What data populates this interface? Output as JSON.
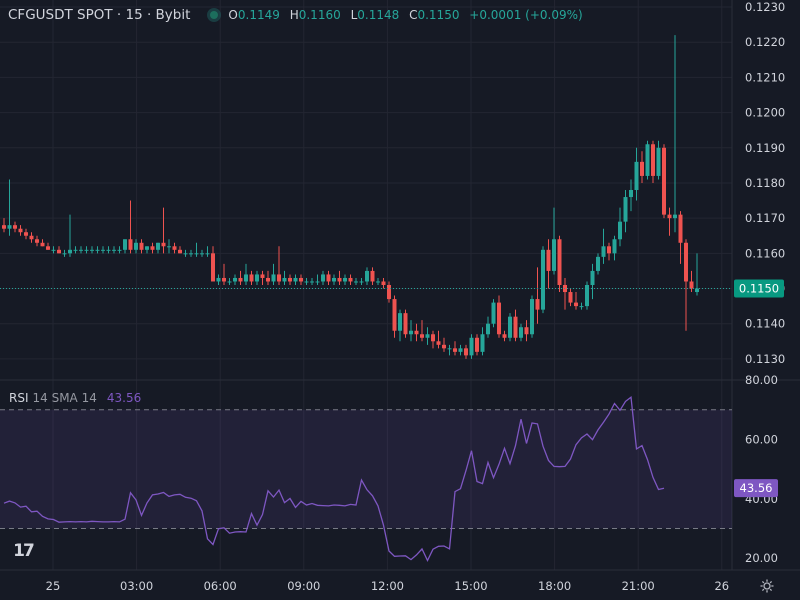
{
  "header": {
    "title": "CFGUSDT SPOT · 15 · Bybit",
    "ohlc": {
      "o_label": "O",
      "o": "0.1149",
      "h_label": "H",
      "h": "0.1160",
      "l_label": "L",
      "l": "0.1148",
      "c_label": "C",
      "c": "0.1150",
      "change": "+0.0001 (+0.09%)"
    }
  },
  "rsi_legend": {
    "name": "RSI",
    "params": "14 SMA 14",
    "value": "43.56"
  },
  "logo": {
    "text": "17"
  },
  "colors": {
    "background": "#161a25",
    "up": "#26a69a",
    "down": "#ef5350",
    "rsi": "#7e57c2",
    "grid": "#232632",
    "text": "#d1d4dc"
  },
  "icons": {
    "status": "live-status-dot",
    "settings": "gear-icon",
    "logo": "tradingview-logo"
  },
  "chart_data": [
    {
      "type": "candlestick",
      "price_axis": {
        "ticks": [
          "0.1230",
          "0.1220",
          "0.1210",
          "0.1200",
          "0.1190",
          "0.1180",
          "0.1170",
          "0.1160",
          "0.1150",
          "0.1140",
          "0.1130"
        ],
        "range": [
          0.1124,
          0.1232
        ]
      },
      "time_axis": {
        "ticks": [
          "25",
          "03:00",
          "06:00",
          "09:00",
          "12:00",
          "15:00",
          "18:00",
          "21:00",
          "26"
        ]
      },
      "current_price": {
        "label": "0.1150",
        "value": 0.115
      },
      "candles": [
        [
          0.1168,
          0.117,
          0.1166,
          0.1167
        ],
        [
          0.1167,
          0.1181,
          0.1165,
          0.1168
        ],
        [
          0.1168,
          0.1169,
          0.1166,
          0.1167
        ],
        [
          0.1167,
          0.1168,
          0.1165,
          0.1166
        ],
        [
          0.1166,
          0.1167,
          0.1164,
          0.1165
        ],
        [
          0.1165,
          0.1166,
          0.1163,
          0.1164
        ],
        [
          0.1164,
          0.1165,
          0.1162,
          0.1163
        ],
        [
          0.1163,
          0.1164,
          0.1162,
          0.1162
        ],
        [
          0.1162,
          0.1163,
          0.1161,
          0.1161
        ],
        [
          0.1161,
          0.1162,
          0.116,
          0.1161
        ],
        [
          0.1161,
          0.1162,
          0.116,
          0.116
        ],
        [
          0.116,
          0.1161,
          0.1159,
          0.116
        ],
        [
          0.116,
          0.1171,
          0.1159,
          0.1161
        ],
        [
          0.1161,
          0.1162,
          0.116,
          0.1161
        ],
        [
          0.1161,
          0.1162,
          0.116,
          0.1161
        ],
        [
          0.1161,
          0.1162,
          0.116,
          0.1161
        ],
        [
          0.1161,
          0.1162,
          0.116,
          0.1161
        ],
        [
          0.1161,
          0.1162,
          0.116,
          0.1161
        ],
        [
          0.1161,
          0.1162,
          0.116,
          0.1161
        ],
        [
          0.1161,
          0.1162,
          0.116,
          0.1161
        ],
        [
          0.1161,
          0.1162,
          0.116,
          0.1161
        ],
        [
          0.1161,
          0.1162,
          0.116,
          0.1161
        ],
        [
          0.1161,
          0.1164,
          0.116,
          0.1164
        ],
        [
          0.1164,
          0.1175,
          0.116,
          0.1161
        ],
        [
          0.1161,
          0.1164,
          0.116,
          0.1163
        ],
        [
          0.1163,
          0.1164,
          0.116,
          0.1161
        ],
        [
          0.1161,
          0.1162,
          0.116,
          0.1162
        ],
        [
          0.1162,
          0.1163,
          0.116,
          0.1161
        ],
        [
          0.1161,
          0.1163,
          0.116,
          0.1163
        ],
        [
          0.1163,
          0.1173,
          0.116,
          0.1162
        ],
        [
          0.1162,
          0.1164,
          0.116,
          0.1162
        ],
        [
          0.1162,
          0.1163,
          0.116,
          0.1161
        ],
        [
          0.1161,
          0.1162,
          0.116,
          0.116
        ],
        [
          0.116,
          0.1161,
          0.1159,
          0.116
        ],
        [
          0.116,
          0.1161,
          0.1159,
          0.116
        ],
        [
          0.116,
          0.1163,
          0.1159,
          0.116
        ],
        [
          0.116,
          0.1161,
          0.1159,
          0.116
        ],
        [
          0.116,
          0.1162,
          0.1159,
          0.116
        ],
        [
          0.116,
          0.1162,
          0.1152,
          0.1152
        ],
        [
          0.1152,
          0.1154,
          0.1151,
          0.1153
        ],
        [
          0.1153,
          0.1157,
          0.1151,
          0.1152
        ],
        [
          0.1152,
          0.1153,
          0.1151,
          0.1152
        ],
        [
          0.1152,
          0.1154,
          0.1151,
          0.1153
        ],
        [
          0.1153,
          0.1155,
          0.1151,
          0.1152
        ],
        [
          0.1152,
          0.1157,
          0.1151,
          0.1154
        ],
        [
          0.1154,
          0.1155,
          0.1151,
          0.1152
        ],
        [
          0.1152,
          0.1155,
          0.1151,
          0.1154
        ],
        [
          0.1154,
          0.1155,
          0.1151,
          0.1153
        ],
        [
          0.1153,
          0.1155,
          0.1151,
          0.1152
        ],
        [
          0.1152,
          0.1157,
          0.1151,
          0.1154
        ],
        [
          0.1154,
          0.1162,
          0.1151,
          0.1152
        ],
        [
          0.1152,
          0.1155,
          0.1151,
          0.1153
        ],
        [
          0.1153,
          0.1154,
          0.1151,
          0.1152
        ],
        [
          0.1152,
          0.1154,
          0.1151,
          0.1153
        ],
        [
          0.1153,
          0.1154,
          0.1151,
          0.1152
        ],
        [
          0.1152,
          0.1153,
          0.1151,
          0.1152
        ],
        [
          0.1152,
          0.1153,
          0.1151,
          0.1152
        ],
        [
          0.1152,
          0.1154,
          0.1151,
          0.1152
        ],
        [
          0.1152,
          0.1155,
          0.1151,
          0.1154
        ],
        [
          0.1154,
          0.1155,
          0.1151,
          0.1152
        ],
        [
          0.1152,
          0.1154,
          0.1151,
          0.1153
        ],
        [
          0.1153,
          0.1155,
          0.1151,
          0.1152
        ],
        [
          0.1152,
          0.1154,
          0.1151,
          0.1153
        ],
        [
          0.1153,
          0.1154,
          0.1151,
          0.1152
        ],
        [
          0.1152,
          0.1153,
          0.1151,
          0.1152
        ],
        [
          0.1152,
          0.1153,
          0.1151,
          0.1152
        ],
        [
          0.1152,
          0.1156,
          0.1151,
          0.1155
        ],
        [
          0.1155,
          0.1156,
          0.1151,
          0.1152
        ],
        [
          0.1152,
          0.1153,
          0.1151,
          0.1152
        ],
        [
          0.1152,
          0.1153,
          0.115,
          0.1151
        ],
        [
          0.1151,
          0.1152,
          0.1146,
          0.1147
        ],
        [
          0.1147,
          0.1148,
          0.1136,
          0.1138
        ],
        [
          0.1138,
          0.1144,
          0.1135,
          0.1143
        ],
        [
          0.1143,
          0.1144,
          0.1136,
          0.1137
        ],
        [
          0.1137,
          0.1141,
          0.1135,
          0.1138
        ],
        [
          0.1138,
          0.114,
          0.1135,
          0.1137
        ],
        [
          0.1137,
          0.1141,
          0.1135,
          0.1136
        ],
        [
          0.1136,
          0.1139,
          0.1134,
          0.1137
        ],
        [
          0.1137,
          0.1138,
          0.1133,
          0.1135
        ],
        [
          0.1135,
          0.1138,
          0.1133,
          0.1134
        ],
        [
          0.1134,
          0.1136,
          0.1132,
          0.1133
        ],
        [
          0.1133,
          0.1134,
          0.1131,
          0.1133
        ],
        [
          0.1133,
          0.1135,
          0.1131,
          0.1132
        ],
        [
          0.1132,
          0.1134,
          0.1131,
          0.1133
        ],
        [
          0.1133,
          0.1134,
          0.113,
          0.1131
        ],
        [
          0.1131,
          0.1137,
          0.113,
          0.1136
        ],
        [
          0.1136,
          0.1137,
          0.1131,
          0.1132
        ],
        [
          0.1132,
          0.1139,
          0.1131,
          0.1137
        ],
        [
          0.1137,
          0.1142,
          0.1136,
          0.114
        ],
        [
          0.114,
          0.1147,
          0.1139,
          0.1146
        ],
        [
          0.1146,
          0.1148,
          0.1136,
          0.1137
        ],
        [
          0.1137,
          0.1138,
          0.1135,
          0.1136
        ],
        [
          0.1136,
          0.1143,
          0.1135,
          0.1142
        ],
        [
          0.1142,
          0.1144,
          0.1135,
          0.1136
        ],
        [
          0.1136,
          0.114,
          0.1135,
          0.1139
        ],
        [
          0.1139,
          0.1141,
          0.1135,
          0.1137
        ],
        [
          0.1137,
          0.1148,
          0.1136,
          0.1147
        ],
        [
          0.1147,
          0.1156,
          0.114,
          0.1144
        ],
        [
          0.1144,
          0.1162,
          0.1143,
          0.1161
        ],
        [
          0.1161,
          0.1164,
          0.115,
          0.1155
        ],
        [
          0.1155,
          0.1173,
          0.1154,
          0.1164
        ],
        [
          0.1164,
          0.1165,
          0.1149,
          0.1151
        ],
        [
          0.1151,
          0.1153,
          0.1144,
          0.1149
        ],
        [
          0.1149,
          0.115,
          0.1145,
          0.1146
        ],
        [
          0.1146,
          0.1149,
          0.1144,
          0.1145
        ],
        [
          0.1145,
          0.1146,
          0.1144,
          0.1145
        ],
        [
          0.1145,
          0.1152,
          0.1144,
          0.1151
        ],
        [
          0.1151,
          0.1157,
          0.1147,
          0.1155
        ],
        [
          0.1155,
          0.116,
          0.1154,
          0.1159
        ],
        [
          0.1159,
          0.1167,
          0.1157,
          0.1162
        ],
        [
          0.1162,
          0.1163,
          0.1158,
          0.116
        ],
        [
          0.116,
          0.1165,
          0.1158,
          0.1164
        ],
        [
          0.1164,
          0.1173,
          0.1162,
          0.1169
        ],
        [
          0.1169,
          0.1178,
          0.1166,
          0.1176
        ],
        [
          0.1176,
          0.1181,
          0.1172,
          0.1178
        ],
        [
          0.1178,
          0.119,
          0.1175,
          0.1186
        ],
        [
          0.1186,
          0.1189,
          0.118,
          0.1182
        ],
        [
          0.1182,
          0.1192,
          0.1181,
          0.1191
        ],
        [
          0.1191,
          0.1192,
          0.118,
          0.1182
        ],
        [
          0.1182,
          0.1192,
          0.1181,
          0.119
        ],
        [
          0.119,
          0.1191,
          0.117,
          0.1171
        ],
        [
          0.1171,
          0.1173,
          0.1165,
          0.117
        ],
        [
          0.117,
          0.1222,
          0.1166,
          0.1171
        ],
        [
          0.1171,
          0.1172,
          0.1157,
          0.1163
        ],
        [
          0.1163,
          0.1164,
          0.1138,
          0.1152
        ],
        [
          0.1152,
          0.1155,
          0.1149,
          0.115
        ],
        [
          0.1149,
          0.116,
          0.1148,
          0.115
        ]
      ]
    },
    {
      "type": "line",
      "name": "RSI",
      "y_axis": {
        "ticks": [
          "80.00",
          "60.00",
          "40.00",
          "20.00"
        ],
        "range": [
          16,
          80
        ]
      },
      "bands": [
        70,
        30
      ],
      "current_value": {
        "label": "43.56",
        "value": 43.56
      },
      "values": [
        38.5,
        39.2,
        38.6,
        37.2,
        37.5,
        35.6,
        35.8,
        34.1,
        33.2,
        33.0,
        32.1,
        32.2,
        32.3,
        32.2,
        32.3,
        32.2,
        32.4,
        32.3,
        32.2,
        32.2,
        32.3,
        32.2,
        33.1,
        42.0,
        39.6,
        34.4,
        38.6,
        41.3,
        41.6,
        42.1,
        40.8,
        41.3,
        41.5,
        40.5,
        40.2,
        39.3,
        35.9,
        26.5,
        24.6,
        29.9,
        30.2,
        28.4,
        28.8,
        28.9,
        28.8,
        35.0,
        31.1,
        34.7,
        42.7,
        40.6,
        42.9,
        38.7,
        40.1,
        37.1,
        39.1,
        37.9,
        38.4,
        37.8,
        37.7,
        37.6,
        37.9,
        37.8,
        37.6,
        38.1,
        37.9,
        46.3,
        43.0,
        41.0,
        37.6,
        31.1,
        22.4,
        20.6,
        20.7,
        20.8,
        19.5,
        21.1,
        23.1,
        19.2,
        23.0,
        24.0,
        24.1,
        23.1,
        42.4,
        43.4,
        49.5,
        56.2,
        45.8,
        45.1,
        52.2,
        47.1,
        51.6,
        57.0,
        51.8,
        57.9,
        66.8,
        58.6,
        65.5,
        65.2,
        57.7,
        52.9,
        50.9,
        50.8,
        50.9,
        53.4,
        58.2,
        60.5,
        61.8,
        59.9,
        63.2,
        65.8,
        68.5,
        72.1,
        69.8,
        72.8,
        74.2,
        56.8,
        57.9,
        53.2,
        47.2,
        43.1,
        43.56
      ]
    }
  ]
}
